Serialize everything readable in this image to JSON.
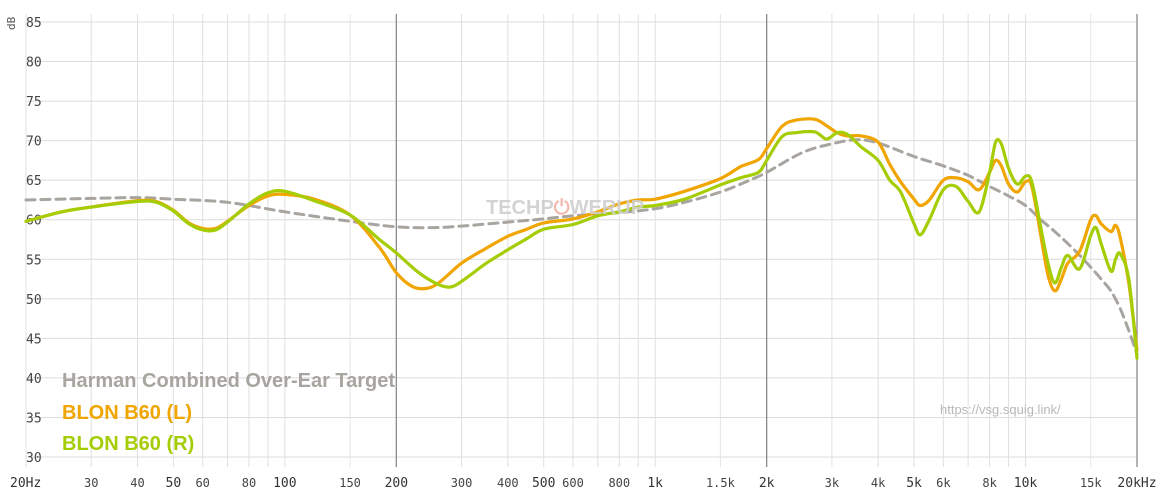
{
  "watermark": {
    "logo_left": "TECHP",
    "logo_right": "WERUP",
    "url": "https://vsg.squig.link/"
  },
  "chart_data": {
    "type": "line",
    "title": "",
    "xlabel": "",
    "ylabel": "dB",
    "x_scale": "log",
    "xlim": [
      20,
      20000
    ],
    "ylim": [
      30,
      85
    ],
    "y_ticks": [
      30,
      35,
      40,
      45,
      50,
      55,
      60,
      65,
      70,
      75,
      80,
      85
    ],
    "x_ticks": [
      {
        "v": 20,
        "label": "20Hz",
        "major": true
      },
      {
        "v": 30,
        "label": "30"
      },
      {
        "v": 40,
        "label": "40"
      },
      {
        "v": 50,
        "label": "50",
        "major": true
      },
      {
        "v": 60,
        "label": "60"
      },
      {
        "v": 80,
        "label": "80"
      },
      {
        "v": 100,
        "label": "100",
        "major": true
      },
      {
        "v": 150,
        "label": "150"
      },
      {
        "v": 200,
        "label": "200",
        "major": true
      },
      {
        "v": 300,
        "label": "300"
      },
      {
        "v": 400,
        "label": "400"
      },
      {
        "v": 500,
        "label": "500",
        "major": true
      },
      {
        "v": 600,
        "label": "600"
      },
      {
        "v": 800,
        "label": "800"
      },
      {
        "v": 1000,
        "label": "1k",
        "major": true
      },
      {
        "v": 1500,
        "label": "1.5k"
      },
      {
        "v": 2000,
        "label": "2k",
        "major": true
      },
      {
        "v": 3000,
        "label": "3k"
      },
      {
        "v": 4000,
        "label": "4k"
      },
      {
        "v": 5000,
        "label": "5k",
        "major": true
      },
      {
        "v": 6000,
        "label": "6k"
      },
      {
        "v": 8000,
        "label": "8k"
      },
      {
        "v": 10000,
        "label": "10k",
        "major": true
      },
      {
        "v": 15000,
        "label": "15k"
      },
      {
        "v": 20000,
        "label": "20kHz",
        "major": true
      }
    ],
    "dark_gridlines_x": [
      200,
      2000,
      20000
    ],
    "grid": true,
    "legend_position": "bottom-left",
    "series": [
      {
        "name": "Harman Combined Over-Ear Target",
        "color": "#a8a49f",
        "dashed": true,
        "points": [
          [
            20,
            62.5
          ],
          [
            30,
            62.7
          ],
          [
            40,
            62.8
          ],
          [
            50,
            62.6
          ],
          [
            70,
            62.2
          ],
          [
            100,
            61
          ],
          [
            150,
            59.8
          ],
          [
            200,
            59.1
          ],
          [
            250,
            59.0
          ],
          [
            300,
            59.2
          ],
          [
            400,
            59.7
          ],
          [
            500,
            60.1
          ],
          [
            600,
            60.5
          ],
          [
            800,
            60.9
          ],
          [
            1000,
            61.4
          ],
          [
            1200,
            62.2
          ],
          [
            1500,
            63.5
          ],
          [
            1800,
            65.0
          ],
          [
            2000,
            66.0
          ],
          [
            2500,
            68.5
          ],
          [
            3000,
            69.6
          ],
          [
            3500,
            70.1
          ],
          [
            4000,
            69.7
          ],
          [
            5000,
            68.0
          ],
          [
            6000,
            66.8
          ],
          [
            7000,
            65.6
          ],
          [
            8000,
            64.2
          ],
          [
            9000,
            63.0
          ],
          [
            10000,
            61.8
          ],
          [
            11000,
            60.0
          ],
          [
            12000,
            58.5
          ],
          [
            13000,
            57.0
          ],
          [
            14000,
            55.5
          ],
          [
            15000,
            54.0
          ],
          [
            16000,
            52.5
          ],
          [
            17000,
            51.0
          ],
          [
            18000,
            48.8
          ],
          [
            19000,
            46.0
          ],
          [
            20000,
            43.0
          ]
        ]
      },
      {
        "name": "BLON B60 (L)",
        "color": "#f0a500",
        "dashed": false,
        "points": [
          [
            20,
            59.8
          ],
          [
            25,
            61.0
          ],
          [
            30,
            61.6
          ],
          [
            40,
            62.4
          ],
          [
            45,
            62.3
          ],
          [
            50,
            61.2
          ],
          [
            55,
            59.6
          ],
          [
            60,
            58.9
          ],
          [
            65,
            58.9
          ],
          [
            70,
            59.8
          ],
          [
            80,
            61.8
          ],
          [
            90,
            63.0
          ],
          [
            100,
            63.2
          ],
          [
            120,
            62.6
          ],
          [
            150,
            60.6
          ],
          [
            180,
            56.5
          ],
          [
            200,
            53.3
          ],
          [
            220,
            51.6
          ],
          [
            240,
            51.3
          ],
          [
            260,
            52.0
          ],
          [
            300,
            54.5
          ],
          [
            350,
            56.4
          ],
          [
            400,
            57.9
          ],
          [
            450,
            58.8
          ],
          [
            500,
            59.6
          ],
          [
            600,
            60.1
          ],
          [
            700,
            61.0
          ],
          [
            800,
            62.0
          ],
          [
            900,
            62.5
          ],
          [
            1000,
            62.6
          ],
          [
            1200,
            63.6
          ],
          [
            1500,
            65.2
          ],
          [
            1700,
            66.7
          ],
          [
            1900,
            67.6
          ],
          [
            2000,
            69.0
          ],
          [
            2200,
            71.8
          ],
          [
            2400,
            72.6
          ],
          [
            2700,
            72.7
          ],
          [
            2900,
            71.9
          ],
          [
            3100,
            71.0
          ],
          [
            3300,
            70.6
          ],
          [
            3600,
            70.6
          ],
          [
            4000,
            69.8
          ],
          [
            4300,
            67.0
          ],
          [
            4600,
            64.8
          ],
          [
            5000,
            62.6
          ],
          [
            5200,
            61.8
          ],
          [
            5500,
            62.5
          ],
          [
            6000,
            65.0
          ],
          [
            6500,
            65.3
          ],
          [
            7000,
            64.8
          ],
          [
            7500,
            63.8
          ],
          [
            8000,
            66.0
          ],
          [
            8300,
            67.5
          ],
          [
            8600,
            66.8
          ],
          [
            9000,
            64.5
          ],
          [
            9500,
            63.5
          ],
          [
            10000,
            64.8
          ],
          [
            10400,
            64.2
          ],
          [
            11000,
            58.0
          ],
          [
            11500,
            53.0
          ],
          [
            12000,
            51.0
          ],
          [
            12500,
            52.5
          ],
          [
            13000,
            54.5
          ],
          [
            14000,
            56.0
          ],
          [
            15000,
            60.0
          ],
          [
            15500,
            60.5
          ],
          [
            16000,
            59.5
          ],
          [
            17000,
            58.5
          ],
          [
            17500,
            59.3
          ],
          [
            18000,
            57.8
          ],
          [
            19000,
            52.0
          ],
          [
            20000,
            43.5
          ]
        ]
      },
      {
        "name": "BLON B60 (R)",
        "color": "#a5cd05",
        "dashed": false,
        "points": [
          [
            20,
            59.8
          ],
          [
            25,
            61.0
          ],
          [
            30,
            61.6
          ],
          [
            40,
            62.3
          ],
          [
            45,
            62.2
          ],
          [
            50,
            61.1
          ],
          [
            55,
            59.5
          ],
          [
            60,
            58.7
          ],
          [
            65,
            58.7
          ],
          [
            70,
            59.7
          ],
          [
            80,
            62.0
          ],
          [
            90,
            63.4
          ],
          [
            100,
            63.6
          ],
          [
            120,
            62.4
          ],
          [
            150,
            60.6
          ],
          [
            180,
            57.5
          ],
          [
            200,
            55.8
          ],
          [
            230,
            53.3
          ],
          [
            260,
            51.8
          ],
          [
            280,
            51.5
          ],
          [
            300,
            52.2
          ],
          [
            350,
            54.5
          ],
          [
            400,
            56.2
          ],
          [
            450,
            57.6
          ],
          [
            500,
            58.8
          ],
          [
            600,
            59.4
          ],
          [
            700,
            60.5
          ],
          [
            800,
            61.0
          ],
          [
            900,
            61.6
          ],
          [
            1000,
            61.8
          ],
          [
            1200,
            62.6
          ],
          [
            1500,
            64.4
          ],
          [
            1700,
            65.3
          ],
          [
            1900,
            66.0
          ],
          [
            2000,
            67.5
          ],
          [
            2200,
            70.5
          ],
          [
            2400,
            71.0
          ],
          [
            2700,
            71.1
          ],
          [
            2900,
            70.2
          ],
          [
            3100,
            71.0
          ],
          [
            3300,
            70.8
          ],
          [
            3600,
            69.2
          ],
          [
            4000,
            67.5
          ],
          [
            4300,
            65.0
          ],
          [
            4600,
            63.5
          ],
          [
            5000,
            59.5
          ],
          [
            5200,
            58.1
          ],
          [
            5500,
            60.0
          ],
          [
            6000,
            63.8
          ],
          [
            6500,
            64.2
          ],
          [
            7000,
            62.3
          ],
          [
            7500,
            61.0
          ],
          [
            8000,
            66.0
          ],
          [
            8300,
            69.8
          ],
          [
            8600,
            69.6
          ],
          [
            9000,
            66.5
          ],
          [
            9500,
            64.5
          ],
          [
            10000,
            65.5
          ],
          [
            10400,
            64.8
          ],
          [
            11000,
            59.0
          ],
          [
            11500,
            54.5
          ],
          [
            12000,
            52.0
          ],
          [
            12500,
            54.0
          ],
          [
            13000,
            55.5
          ],
          [
            14000,
            53.8
          ],
          [
            15000,
            58.0
          ],
          [
            15500,
            59.0
          ],
          [
            16000,
            57.0
          ],
          [
            17000,
            53.5
          ],
          [
            17500,
            55.0
          ],
          [
            18000,
            55.7
          ],
          [
            19000,
            52.5
          ],
          [
            20000,
            42.5
          ]
        ]
      }
    ]
  }
}
